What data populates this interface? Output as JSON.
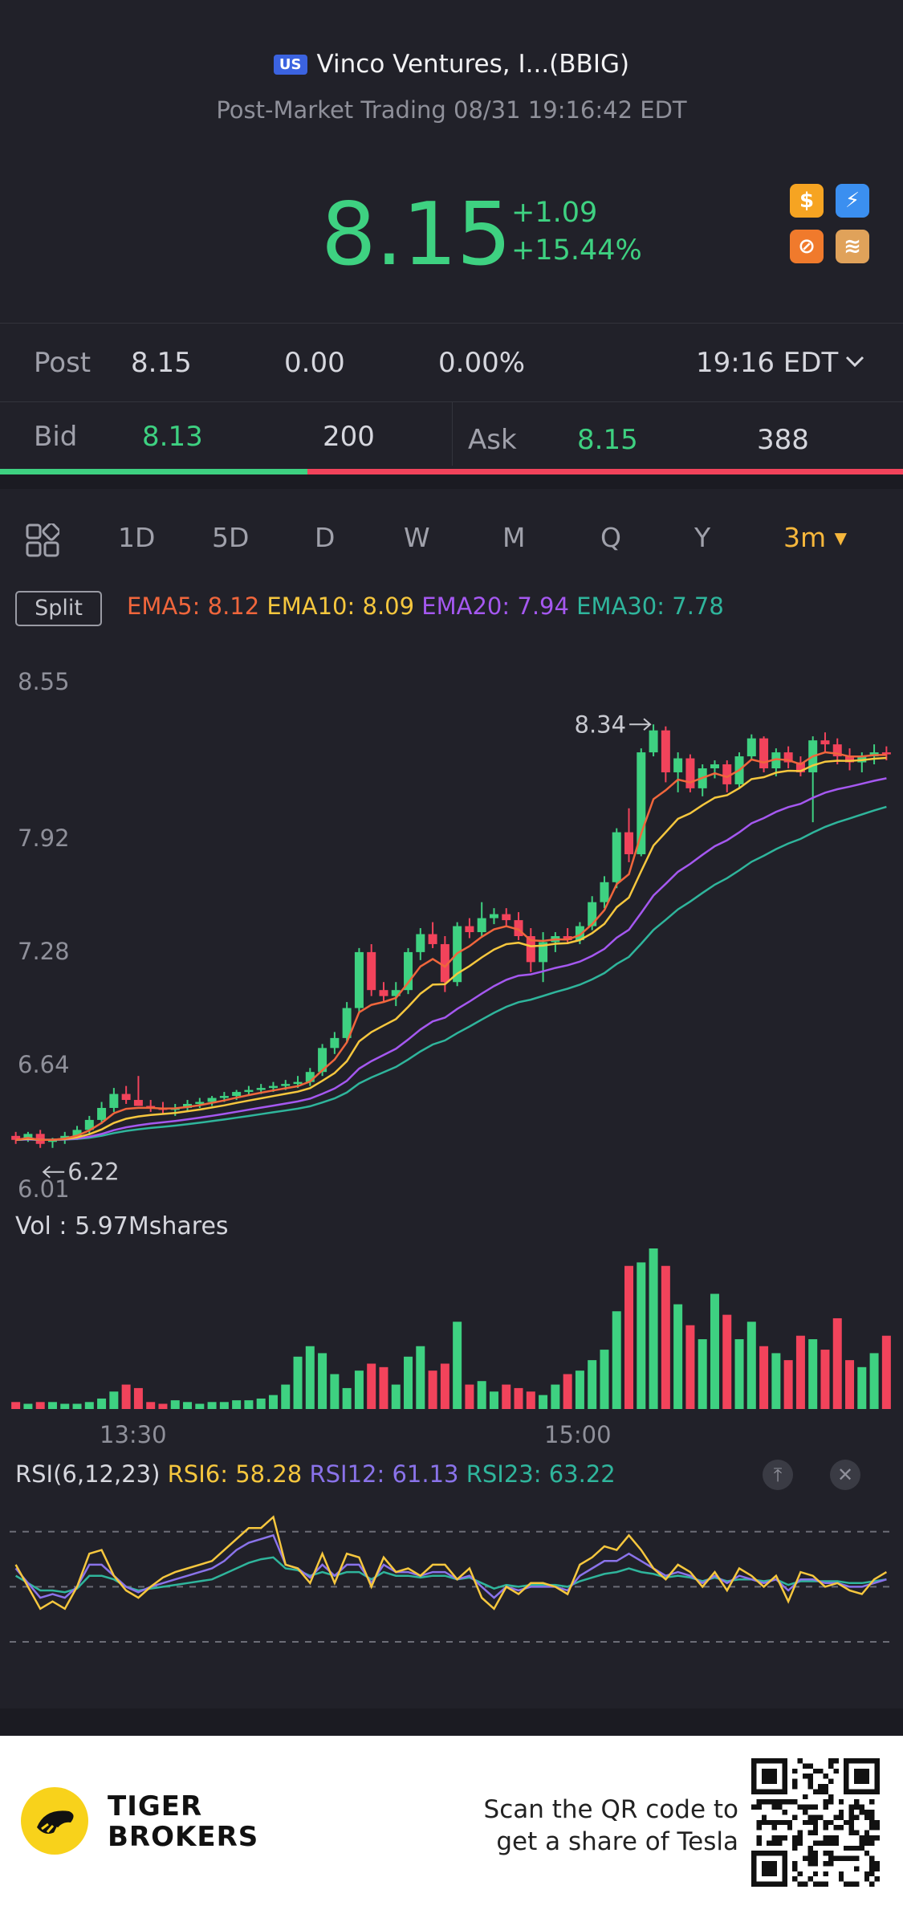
{
  "header": {
    "market_badge": "US",
    "title": "Vinco Ventures, I...(BBIG)",
    "subtitle": "Post-Market Trading 08/31 19:16:42 EDT"
  },
  "quote": {
    "price": "8.15",
    "change": "+1.09",
    "change_pct": "+15.44%",
    "color_up": "#3ed181",
    "color_down": "#f2435b"
  },
  "post_row": {
    "label": "Post",
    "price": "8.15",
    "change": "0.00",
    "change_pct": "0.00%",
    "time": "19:16 EDT"
  },
  "bid_ask": {
    "bid_label": "Bid",
    "bid_price": "8.13",
    "bid_size": "200",
    "ask_label": "Ask",
    "ask_price": "8.15",
    "ask_size": "388",
    "bid_ratio": 0.34
  },
  "tabs": [
    "1D",
    "5D",
    "D",
    "W",
    "M",
    "Q",
    "Y"
  ],
  "active_tab": "3m",
  "split_label": "Split",
  "ema": {
    "ema5": "EMA5: 8.12",
    "ema10": "EMA10: 8.09",
    "ema20": "EMA20: 7.94",
    "ema30": "EMA30: 7.78",
    "colors": {
      "ema5": "#f0663c",
      "ema10": "#f6c73e",
      "ema20": "#a558f0",
      "ema30": "#2fb59c"
    }
  },
  "price_axis": [
    "8.55",
    "7.92",
    "7.28",
    "6.64",
    "6.01"
  ],
  "markers": {
    "high": "8.34",
    "low": "6.22"
  },
  "volume_label": "Vol  : 5.97Mshares",
  "time_axis": [
    "13:30",
    "15:00"
  ],
  "rsi": {
    "title": "RSI(6,12,23)",
    "rsi6": "RSI6: 58.28",
    "rsi12": "RSI12: 61.13",
    "rsi23": "RSI23: 63.22",
    "colors": {
      "rsi6": "#f6c73e",
      "rsi12": "#8a73ea",
      "rsi23": "#2fb59c"
    }
  },
  "footer": {
    "brand_line1": "TIGER",
    "brand_line2": "BROKERS",
    "scan_line1": "Scan the QR code to",
    "scan_line2": "get a share of Tesla"
  },
  "chart_data": {
    "type": "candlestick",
    "interval": "3m",
    "ylim": [
      6.01,
      8.55
    ],
    "candles": [
      [
        6.28,
        6.3,
        6.24,
        6.26
      ],
      [
        6.27,
        6.3,
        6.25,
        6.29
      ],
      [
        6.29,
        6.31,
        6.22,
        6.24
      ],
      [
        6.25,
        6.27,
        6.22,
        6.26
      ],
      [
        6.26,
        6.3,
        6.24,
        6.28
      ],
      [
        6.28,
        6.33,
        6.26,
        6.31
      ],
      [
        6.31,
        6.38,
        6.29,
        6.36
      ],
      [
        6.36,
        6.45,
        6.34,
        6.42
      ],
      [
        6.42,
        6.52,
        6.4,
        6.49
      ],
      [
        6.49,
        6.53,
        6.44,
        6.46
      ],
      [
        6.46,
        6.58,
        6.44,
        6.43
      ],
      [
        6.43,
        6.46,
        6.4,
        6.42
      ],
      [
        6.42,
        6.45,
        6.39,
        6.41
      ],
      [
        6.41,
        6.44,
        6.38,
        6.42
      ],
      [
        6.42,
        6.46,
        6.4,
        6.44
      ],
      [
        6.44,
        6.47,
        6.42,
        6.45
      ],
      [
        6.45,
        6.48,
        6.43,
        6.47
      ],
      [
        6.47,
        6.5,
        6.45,
        6.48
      ],
      [
        6.48,
        6.51,
        6.46,
        6.5
      ],
      [
        6.5,
        6.53,
        6.48,
        6.51
      ],
      [
        6.51,
        6.54,
        6.49,
        6.52
      ],
      [
        6.52,
        6.55,
        6.5,
        6.53
      ],
      [
        6.53,
        6.56,
        6.51,
        6.54
      ],
      [
        6.54,
        6.58,
        6.52,
        6.55
      ],
      [
        6.55,
        6.62,
        6.53,
        6.6
      ],
      [
        6.6,
        6.74,
        6.58,
        6.72
      ],
      [
        6.72,
        6.8,
        6.69,
        6.77
      ],
      [
        6.77,
        6.95,
        6.75,
        6.92
      ],
      [
        6.92,
        7.22,
        6.9,
        7.2
      ],
      [
        7.2,
        7.24,
        6.98,
        7.01
      ],
      [
        7.01,
        7.05,
        6.95,
        6.98
      ],
      [
        6.98,
        7.05,
        6.93,
        7.01
      ],
      [
        7.01,
        7.22,
        6.99,
        7.2
      ],
      [
        7.2,
        7.32,
        7.16,
        7.29
      ],
      [
        7.29,
        7.35,
        7.22,
        7.24
      ],
      [
        7.24,
        7.28,
        7.0,
        7.05
      ],
      [
        7.05,
        7.35,
        7.03,
        7.33
      ],
      [
        7.33,
        7.37,
        7.27,
        7.3
      ],
      [
        7.3,
        7.45,
        7.28,
        7.37
      ],
      [
        7.37,
        7.42,
        7.34,
        7.39
      ],
      [
        7.39,
        7.42,
        7.33,
        7.36
      ],
      [
        7.36,
        7.4,
        7.26,
        7.28
      ],
      [
        7.28,
        7.32,
        7.1,
        7.15
      ],
      [
        7.15,
        7.3,
        7.05,
        7.25
      ],
      [
        7.25,
        7.3,
        7.2,
        7.28
      ],
      [
        7.28,
        7.32,
        7.24,
        7.26
      ],
      [
        7.26,
        7.35,
        7.24,
        7.33
      ],
      [
        7.33,
        7.48,
        7.31,
        7.45
      ],
      [
        7.45,
        7.58,
        7.42,
        7.55
      ],
      [
        7.55,
        7.82,
        7.52,
        7.8
      ],
      [
        7.8,
        7.92,
        7.65,
        7.69
      ],
      [
        7.69,
        8.22,
        7.68,
        8.2
      ],
      [
        8.2,
        8.34,
        8.18,
        8.31
      ],
      [
        8.31,
        8.33,
        8.05,
        8.1
      ],
      [
        8.1,
        8.2,
        8.0,
        8.17
      ],
      [
        8.17,
        8.19,
        8.0,
        8.02
      ],
      [
        8.02,
        8.14,
        7.98,
        8.12
      ],
      [
        8.12,
        8.16,
        8.07,
        8.14
      ],
      [
        8.14,
        8.16,
        8.0,
        8.04
      ],
      [
        8.04,
        8.2,
        8.02,
        8.18
      ],
      [
        8.18,
        8.29,
        8.16,
        8.27
      ],
      [
        8.27,
        8.28,
        8.1,
        8.12
      ],
      [
        8.12,
        8.22,
        8.08,
        8.2
      ],
      [
        8.2,
        8.23,
        8.12,
        8.15
      ],
      [
        8.15,
        8.18,
        8.08,
        8.1
      ],
      [
        8.1,
        8.28,
        7.85,
        8.26
      ],
      [
        8.26,
        8.3,
        8.2,
        8.24
      ],
      [
        8.24,
        8.27,
        8.14,
        8.18
      ],
      [
        8.18,
        8.22,
        8.11,
        8.15
      ],
      [
        8.15,
        8.2,
        8.1,
        8.18
      ],
      [
        8.18,
        8.24,
        8.14,
        8.2
      ],
      [
        8.2,
        8.23,
        8.16,
        8.19
      ]
    ],
    "volume": [
      4,
      3,
      4,
      4,
      3,
      3,
      4,
      6,
      10,
      14,
      12,
      4,
      3,
      5,
      4,
      3,
      4,
      4,
      5,
      5,
      6,
      8,
      14,
      30,
      36,
      32,
      20,
      12,
      22,
      26,
      24,
      14,
      30,
      36,
      22,
      26,
      50,
      14,
      16,
      10,
      14,
      12,
      10,
      8,
      14,
      20,
      22,
      28,
      34,
      56,
      82,
      84,
      92,
      82,
      60,
      48,
      40,
      66,
      54,
      40,
      50,
      36,
      32,
      28,
      42,
      40,
      34,
      52,
      28,
      24,
      32,
      42
    ],
    "rsi6": [
      62,
      50,
      38,
      42,
      38,
      50,
      68,
      70,
      56,
      48,
      44,
      50,
      55,
      58,
      60,
      62,
      64,
      70,
      76,
      82,
      82,
      88,
      62,
      60,
      52,
      68,
      52,
      68,
      66,
      50,
      66,
      58,
      60,
      56,
      62,
      62,
      54,
      60,
      44,
      38,
      50,
      46,
      52,
      52,
      50,
      46,
      62,
      66,
      72,
      70,
      78,
      70,
      60,
      54,
      62,
      58,
      50,
      58,
      48,
      60,
      56,
      50,
      56,
      42,
      58,
      56,
      50,
      52,
      48,
      46,
      54,
      58
    ],
    "rsi12": [
      60,
      52,
      44,
      46,
      44,
      50,
      62,
      62,
      56,
      50,
      47,
      50,
      52,
      54,
      56,
      58,
      60,
      64,
      70,
      74,
      76,
      78,
      62,
      60,
      55,
      62,
      56,
      62,
      62,
      52,
      62,
      58,
      58,
      56,
      58,
      58,
      54,
      56,
      50,
      44,
      50,
      48,
      50,
      50,
      50,
      48,
      56,
      60,
      64,
      64,
      68,
      64,
      60,
      56,
      58,
      56,
      52,
      56,
      52,
      56,
      54,
      52,
      54,
      48,
      54,
      54,
      52,
      52,
      50,
      50,
      52,
      54
    ],
    "rsi23": [
      56,
      52,
      48,
      48,
      47,
      49,
      56,
      56,
      54,
      50,
      48,
      49,
      50,
      51,
      52,
      53,
      54,
      57,
      60,
      63,
      65,
      66,
      60,
      59,
      56,
      58,
      56,
      58,
      58,
      54,
      58,
      56,
      56,
      55,
      56,
      56,
      54,
      55,
      52,
      49,
      51,
      50,
      51,
      51,
      51,
      50,
      53,
      55,
      57,
      58,
      60,
      58,
      57,
      55,
      56,
      55,
      53,
      55,
      53,
      54,
      54,
      53,
      54,
      51,
      53,
      53,
      53,
      53,
      52,
      52,
      53,
      54
    ]
  }
}
